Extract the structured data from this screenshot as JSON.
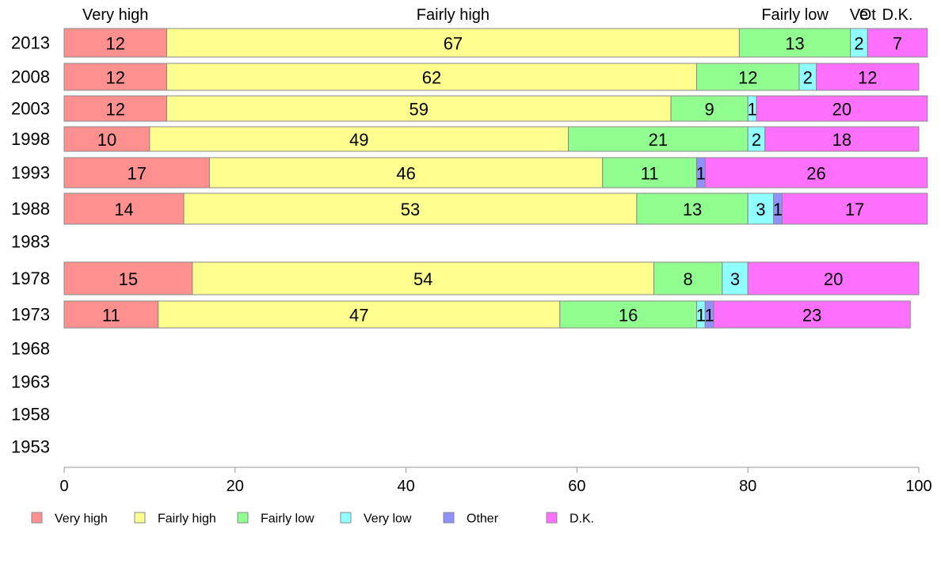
{
  "chart_data": {
    "type": "bar",
    "orientation": "horizontal",
    "stacked": true,
    "categories": [
      "2013",
      "2008",
      "2003",
      "1998",
      "1993",
      "1988",
      "1983",
      "1978",
      "1973",
      "1968",
      "1963",
      "1958",
      "1953"
    ],
    "series": [
      {
        "name": "Very high",
        "color": "#ff9090",
        "values": [
          12,
          12,
          12,
          10,
          17,
          14,
          null,
          15,
          11,
          null,
          null,
          null,
          null
        ]
      },
      {
        "name": "Fairly high",
        "color": "#ffff90",
        "values": [
          67,
          62,
          59,
          49,
          46,
          53,
          null,
          54,
          47,
          null,
          null,
          null,
          null
        ]
      },
      {
        "name": "Fairly low",
        "color": "#90ff90",
        "values": [
          13,
          12,
          9,
          21,
          11,
          13,
          null,
          8,
          16,
          null,
          null,
          null,
          null
        ]
      },
      {
        "name": "Very low",
        "color": "#90ffff",
        "values": [
          2,
          2,
          1,
          2,
          0,
          3,
          null,
          3,
          1,
          null,
          null,
          null,
          null
        ]
      },
      {
        "name": "Other",
        "color": "#9090ff",
        "values": [
          0,
          0,
          0,
          0,
          1,
          1,
          null,
          0,
          1,
          null,
          null,
          null,
          null
        ]
      },
      {
        "name": "D.K.",
        "color": "#ff70ff",
        "values": [
          7,
          12,
          20,
          18,
          26,
          17,
          null,
          20,
          23,
          null,
          null,
          null,
          null
        ]
      }
    ],
    "xlim": [
      0,
      100
    ],
    "xticks": [
      "0",
      "20",
      "40",
      "60",
      "80",
      "100"
    ],
    "top_labels": [
      "Very high",
      "Fairly high",
      "Fairly low",
      "Ve",
      "Ot",
      "D.K."
    ],
    "legend_position": "bottom",
    "grid": false
  }
}
